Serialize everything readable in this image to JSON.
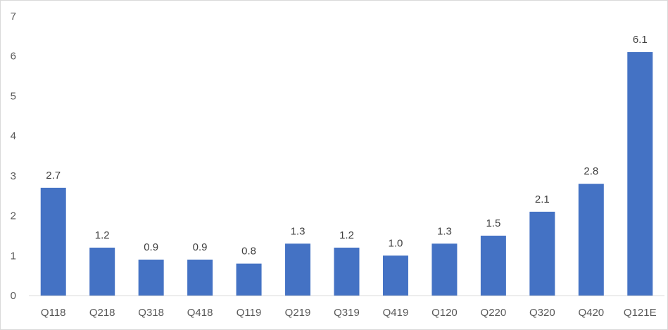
{
  "chart_data": {
    "type": "bar",
    "title": "",
    "xlabel": "",
    "ylabel": "",
    "categories": [
      "Q118",
      "Q218",
      "Q318",
      "Q418",
      "Q119",
      "Q219",
      "Q319",
      "Q419",
      "Q120",
      "Q220",
      "Q320",
      "Q420",
      "Q121E"
    ],
    "values": [
      2.7,
      1.2,
      0.9,
      0.9,
      0.8,
      1.3,
      1.2,
      1.0,
      1.3,
      1.5,
      2.1,
      2.8,
      6.1
    ],
    "data_labels": [
      "2.7",
      "1.2",
      "0.9",
      "0.9",
      "0.8",
      "1.3",
      "1.2",
      "1.0",
      "1.3",
      "1.5",
      "2.1",
      "2.8",
      "6.1"
    ],
    "ylim": [
      0,
      7
    ],
    "yticks": [
      "0",
      "1",
      "2",
      "3",
      "4",
      "5",
      "6",
      "7"
    ],
    "grid": false,
    "legend": "none",
    "colors": {
      "bar": "#4472C4",
      "axis": "#d9d9d9",
      "tick_text": "#595959",
      "label_text": "#404040"
    }
  }
}
